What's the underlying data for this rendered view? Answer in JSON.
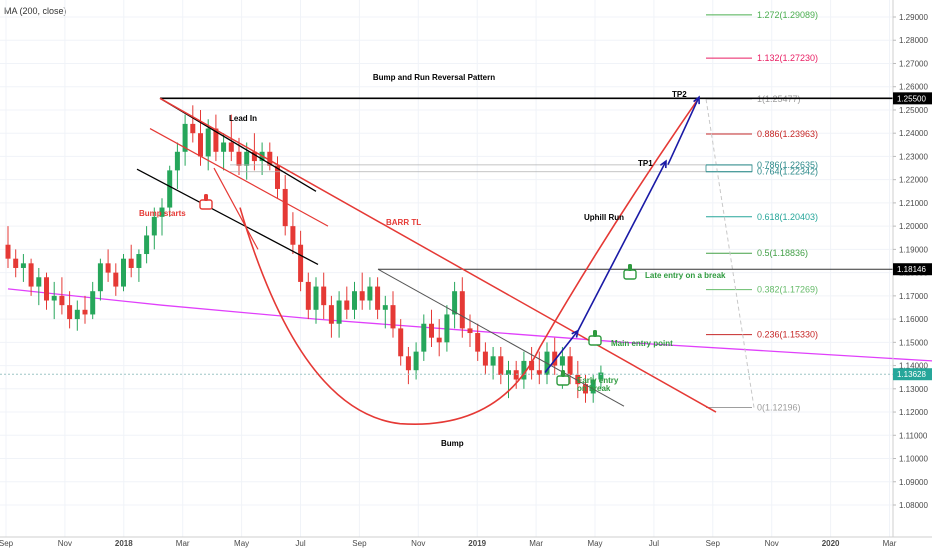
{
  "indicator_label": "MA (200, close)",
  "chart_data": {
    "type": "candlestick",
    "title": "Bump and Run Reversal Pattern",
    "y_range": [
      1.075,
      1.3
    ],
    "y_ticks": [
      "1.29000",
      "1.28000",
      "1.27000",
      "1.26000",
      "1.25000",
      "1.24000",
      "1.23000",
      "1.22000",
      "1.21000",
      "1.20000",
      "1.19000",
      "1.18000",
      "1.17000",
      "1.16000",
      "1.15000",
      "1.14000",
      "1.13000",
      "1.12000",
      "1.11000",
      "1.10000",
      "1.09000",
      "1.08000"
    ],
    "x_ticks": [
      "Sep",
      "Nov",
      "2018",
      "Mar",
      "May",
      "Jul",
      "Sep",
      "Nov",
      "2019",
      "Mar",
      "May",
      "Jul",
      "Sep",
      "Nov",
      "2020",
      "Mar"
    ],
    "price_badges": [
      {
        "value": "1.25500",
        "price": 1.255
      },
      {
        "value": "1.18146",
        "price": 1.18146
      },
      {
        "value": "1.13628",
        "price": 1.13628
      }
    ],
    "fib_levels": [
      {
        "ratio": "1.272",
        "price": "1.29089",
        "value": 1.29089,
        "color": "#4caf50"
      },
      {
        "ratio": "1.132",
        "price": "1.27230",
        "value": 1.2723,
        "color": "#e91e63"
      },
      {
        "ratio": "1",
        "price": "1.25477",
        "value": 1.25477,
        "color": "#9e9e9e"
      },
      {
        "ratio": "0.886",
        "price": "1.23963",
        "value": 1.23963,
        "color": "#c62828"
      },
      {
        "ratio": "0.786",
        "price": "1.22635",
        "value": 1.22635,
        "color": "#2e8b8b"
      },
      {
        "ratio": "0.764",
        "price": "1.22342",
        "value": 1.22342,
        "color": "#2e8b8b"
      },
      {
        "ratio": "0.618",
        "price": "1.20403",
        "value": 1.20403,
        "color": "#26a69a"
      },
      {
        "ratio": "0.5",
        "price": "1.18836",
        "value": 1.18836,
        "color": "#43a047"
      },
      {
        "ratio": "0.382",
        "price": "1.17269",
        "value": 1.17269,
        "color": "#66bb6a"
      },
      {
        "ratio": "0.236",
        "price": "1.15330",
        "value": 1.1533,
        "color": "#c62828"
      },
      {
        "ratio": "0",
        "price": "1.12196",
        "value": 1.12196,
        "color": "#9e9e9e"
      }
    ],
    "annotations": {
      "lead_in": "Lead In",
      "bump_starts": "Bump starts",
      "barr_tl": "BARR TL",
      "uphill_run": "Uphill Run",
      "tp1": "TP1",
      "tp2": "TP2",
      "late_entry": "Late entry on a break",
      "main_entry": "Main entry point",
      "early_entry_1": "Early entry",
      "early_entry_2": "on break",
      "bump": "Bump"
    },
    "colors": {
      "up_candle": "#26a65b",
      "down_candle": "#e53935",
      "ma_line": "#e040fb",
      "trend_red": "#e53935",
      "projection_blue": "#1a1aa6"
    },
    "candles": [
      [
        1.192,
        1.2,
        1.182,
        1.186
      ],
      [
        1.186,
        1.19,
        1.178,
        1.182
      ],
      [
        1.182,
        1.188,
        1.176,
        1.184
      ],
      [
        1.184,
        1.186,
        1.17,
        1.174
      ],
      [
        1.174,
        1.182,
        1.166,
        1.178
      ],
      [
        1.178,
        1.18,
        1.164,
        1.168
      ],
      [
        1.168,
        1.176,
        1.16,
        1.17
      ],
      [
        1.17,
        1.178,
        1.162,
        1.166
      ],
      [
        1.166,
        1.172,
        1.156,
        1.16
      ],
      [
        1.16,
        1.168,
        1.155,
        1.164
      ],
      [
        1.164,
        1.17,
        1.158,
        1.162
      ],
      [
        1.162,
        1.176,
        1.16,
        1.172
      ],
      [
        1.172,
        1.186,
        1.168,
        1.184
      ],
      [
        1.184,
        1.19,
        1.176,
        1.18
      ],
      [
        1.18,
        1.184,
        1.17,
        1.174
      ],
      [
        1.174,
        1.188,
        1.172,
        1.186
      ],
      [
        1.186,
        1.192,
        1.178,
        1.182
      ],
      [
        1.182,
        1.19,
        1.176,
        1.188
      ],
      [
        1.188,
        1.2,
        1.184,
        1.196
      ],
      [
        1.196,
        1.208,
        1.19,
        1.204
      ],
      [
        1.204,
        1.212,
        1.196,
        1.208
      ],
      [
        1.208,
        1.226,
        1.204,
        1.224
      ],
      [
        1.224,
        1.236,
        1.216,
        1.232
      ],
      [
        1.232,
        1.248,
        1.226,
        1.244
      ],
      [
        1.244,
        1.252,
        1.236,
        1.24
      ],
      [
        1.24,
        1.25,
        1.226,
        1.23
      ],
      [
        1.23,
        1.246,
        1.224,
        1.242
      ],
      [
        1.242,
        1.248,
        1.228,
        1.232
      ],
      [
        1.232,
        1.24,
        1.224,
        1.236
      ],
      [
        1.236,
        1.248,
        1.228,
        1.232
      ],
      [
        1.232,
        1.238,
        1.222,
        1.226
      ],
      [
        1.226,
        1.236,
        1.22,
        1.232
      ],
      [
        1.232,
        1.24,
        1.224,
        1.228
      ],
      [
        1.228,
        1.236,
        1.222,
        1.232
      ],
      [
        1.232,
        1.236,
        1.224,
        1.226
      ],
      [
        1.226,
        1.23,
        1.212,
        1.216
      ],
      [
        1.216,
        1.222,
        1.196,
        1.2
      ],
      [
        1.2,
        1.206,
        1.188,
        1.192
      ],
      [
        1.192,
        1.198,
        1.172,
        1.176
      ],
      [
        1.176,
        1.18,
        1.16,
        1.164
      ],
      [
        1.164,
        1.178,
        1.158,
        1.174
      ],
      [
        1.174,
        1.18,
        1.16,
        1.166
      ],
      [
        1.166,
        1.17,
        1.152,
        1.158
      ],
      [
        1.158,
        1.172,
        1.152,
        1.168
      ],
      [
        1.168,
        1.174,
        1.16,
        1.164
      ],
      [
        1.164,
        1.176,
        1.16,
        1.172
      ],
      [
        1.172,
        1.18,
        1.164,
        1.168
      ],
      [
        1.168,
        1.178,
        1.164,
        1.174
      ],
      [
        1.174,
        1.178,
        1.16,
        1.164
      ],
      [
        1.164,
        1.17,
        1.156,
        1.166
      ],
      [
        1.166,
        1.172,
        1.152,
        1.156
      ],
      [
        1.156,
        1.16,
        1.14,
        1.144
      ],
      [
        1.144,
        1.148,
        1.132,
        1.138
      ],
      [
        1.138,
        1.15,
        1.134,
        1.146
      ],
      [
        1.146,
        1.162,
        1.142,
        1.158
      ],
      [
        1.158,
        1.164,
        1.148,
        1.152
      ],
      [
        1.152,
        1.16,
        1.144,
        1.15
      ],
      [
        1.15,
        1.166,
        1.146,
        1.162
      ],
      [
        1.162,
        1.176,
        1.156,
        1.172
      ],
      [
        1.172,
        1.178,
        1.152,
        1.156
      ],
      [
        1.156,
        1.162,
        1.148,
        1.154
      ],
      [
        1.154,
        1.158,
        1.142,
        1.146
      ],
      [
        1.146,
        1.15,
        1.136,
        1.14
      ],
      [
        1.14,
        1.148,
        1.134,
        1.144
      ],
      [
        1.144,
        1.148,
        1.132,
        1.136
      ],
      [
        1.136,
        1.142,
        1.126,
        1.138
      ],
      [
        1.138,
        1.142,
        1.13,
        1.134
      ],
      [
        1.134,
        1.146,
        1.13,
        1.142
      ],
      [
        1.142,
        1.148,
        1.134,
        1.138
      ],
      [
        1.138,
        1.146,
        1.132,
        1.136
      ],
      [
        1.136,
        1.15,
        1.132,
        1.146
      ],
      [
        1.146,
        1.152,
        1.136,
        1.14
      ],
      [
        1.14,
        1.148,
        1.13,
        1.144
      ],
      [
        1.144,
        1.148,
        1.132,
        1.136
      ],
      [
        1.136,
        1.142,
        1.126,
        1.132
      ],
      [
        1.132,
        1.136,
        1.124,
        1.128
      ],
      [
        1.128,
        1.136,
        1.124,
        1.134
      ],
      [
        1.134,
        1.14,
        1.13,
        1.137
      ]
    ],
    "ma_200": [
      [
        0,
        1.173
      ],
      [
        20,
        1.166
      ],
      [
        40,
        1.16
      ],
      [
        60,
        1.155
      ],
      [
        80,
        1.15
      ],
      [
        100,
        1.146
      ],
      [
        120,
        1.142
      ],
      [
        140,
        1.138
      ],
      [
        150,
        1.136
      ],
      [
        160,
        1.134
      ],
      [
        170,
        1.133
      ],
      [
        180,
        1.133
      ],
      [
        187,
        1.134
      ]
    ]
  }
}
